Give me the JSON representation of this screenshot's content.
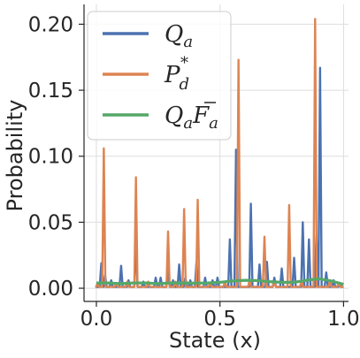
{
  "chart_data": {
    "type": "line",
    "title": "",
    "xlabel": "State (x)",
    "ylabel": "Probability",
    "xlim": [
      -0.05,
      1.02
    ],
    "ylim": [
      -0.01,
      0.215
    ],
    "xticks": [
      0.0,
      0.5,
      1.0
    ],
    "xtick_labels": [
      "0.0",
      "0.5",
      "1.0"
    ],
    "yticks": [
      0.0,
      0.05,
      0.1,
      0.15,
      0.2
    ],
    "ytick_labels": [
      "0.00",
      "0.05",
      "0.10",
      "0.15",
      "0.20"
    ],
    "grid": true,
    "legend_position": "top-left",
    "series": [
      {
        "name": "Q_a",
        "color": "#4c72b0",
        "peaks": [
          [
            0.02,
            0.019
          ],
          [
            0.035,
            0.01
          ],
          [
            0.06,
            0.006
          ],
          [
            0.1,
            0.017
          ],
          [
            0.13,
            0.006
          ],
          [
            0.16,
            0.035
          ],
          [
            0.19,
            0.005
          ],
          [
            0.24,
            0.008
          ],
          [
            0.26,
            0.008
          ],
          [
            0.29,
            0.015
          ],
          [
            0.31,
            0.006
          ],
          [
            0.335,
            0.018
          ],
          [
            0.36,
            0.008
          ],
          [
            0.38,
            0.006
          ],
          [
            0.405,
            0.02
          ],
          [
            0.44,
            0.008
          ],
          [
            0.47,
            0.006
          ],
          [
            0.49,
            0.008
          ],
          [
            0.54,
            0.037
          ],
          [
            0.565,
            0.105
          ],
          [
            0.625,
            0.064
          ],
          [
            0.66,
            0.018
          ],
          [
            0.69,
            0.02
          ],
          [
            0.72,
            0.008
          ],
          [
            0.75,
            0.015
          ],
          [
            0.8,
            0.023
          ],
          [
            0.835,
            0.05
          ],
          [
            0.86,
            0.037
          ],
          [
            0.89,
            0.04
          ],
          [
            0.905,
            0.167
          ],
          [
            0.93,
            0.012
          ],
          [
            0.96,
            0.006
          ],
          [
            0.985,
            0.004
          ]
        ]
      },
      {
        "name": "P_d^*",
        "color": "#dd8452",
        "peaks": [
          [
            0.005,
            0.004
          ],
          [
            0.03,
            0.106
          ],
          [
            0.08,
            0.004
          ],
          [
            0.125,
            0.005
          ],
          [
            0.16,
            0.084
          ],
          [
            0.21,
            0.005
          ],
          [
            0.29,
            0.043
          ],
          [
            0.32,
            0.005
          ],
          [
            0.355,
            0.06
          ],
          [
            0.41,
            0.067
          ],
          [
            0.46,
            0.004
          ],
          [
            0.52,
            0.005
          ],
          [
            0.575,
            0.173
          ],
          [
            0.62,
            0.006
          ],
          [
            0.68,
            0.039
          ],
          [
            0.72,
            0.005
          ],
          [
            0.78,
            0.063
          ],
          [
            0.83,
            0.006
          ],
          [
            0.885,
            0.204
          ],
          [
            0.945,
            0.006
          ],
          [
            0.98,
            0.004
          ]
        ]
      },
      {
        "name": "Q_a F̄_a",
        "color": "#55a868",
        "points": [
          [
            0.0,
            0.004
          ],
          [
            0.05,
            0.004
          ],
          [
            0.1,
            0.0035
          ],
          [
            0.15,
            0.004
          ],
          [
            0.2,
            0.004
          ],
          [
            0.25,
            0.0035
          ],
          [
            0.3,
            0.004
          ],
          [
            0.35,
            0.004
          ],
          [
            0.4,
            0.0038
          ],
          [
            0.45,
            0.004
          ],
          [
            0.5,
            0.0045
          ],
          [
            0.55,
            0.0055
          ],
          [
            0.6,
            0.006
          ],
          [
            0.65,
            0.0058
          ],
          [
            0.7,
            0.005
          ],
          [
            0.75,
            0.0045
          ],
          [
            0.8,
            0.0045
          ],
          [
            0.85,
            0.006
          ],
          [
            0.9,
            0.0072
          ],
          [
            0.95,
            0.0055
          ],
          [
            1.0,
            0.003
          ]
        ]
      }
    ],
    "legend": {
      "entries": [
        "Q",
        "P",
        "Q",
        "F"
      ],
      "subscripts": [
        "a",
        "d",
        "a",
        "a"
      ],
      "superscript": "*"
    }
  }
}
